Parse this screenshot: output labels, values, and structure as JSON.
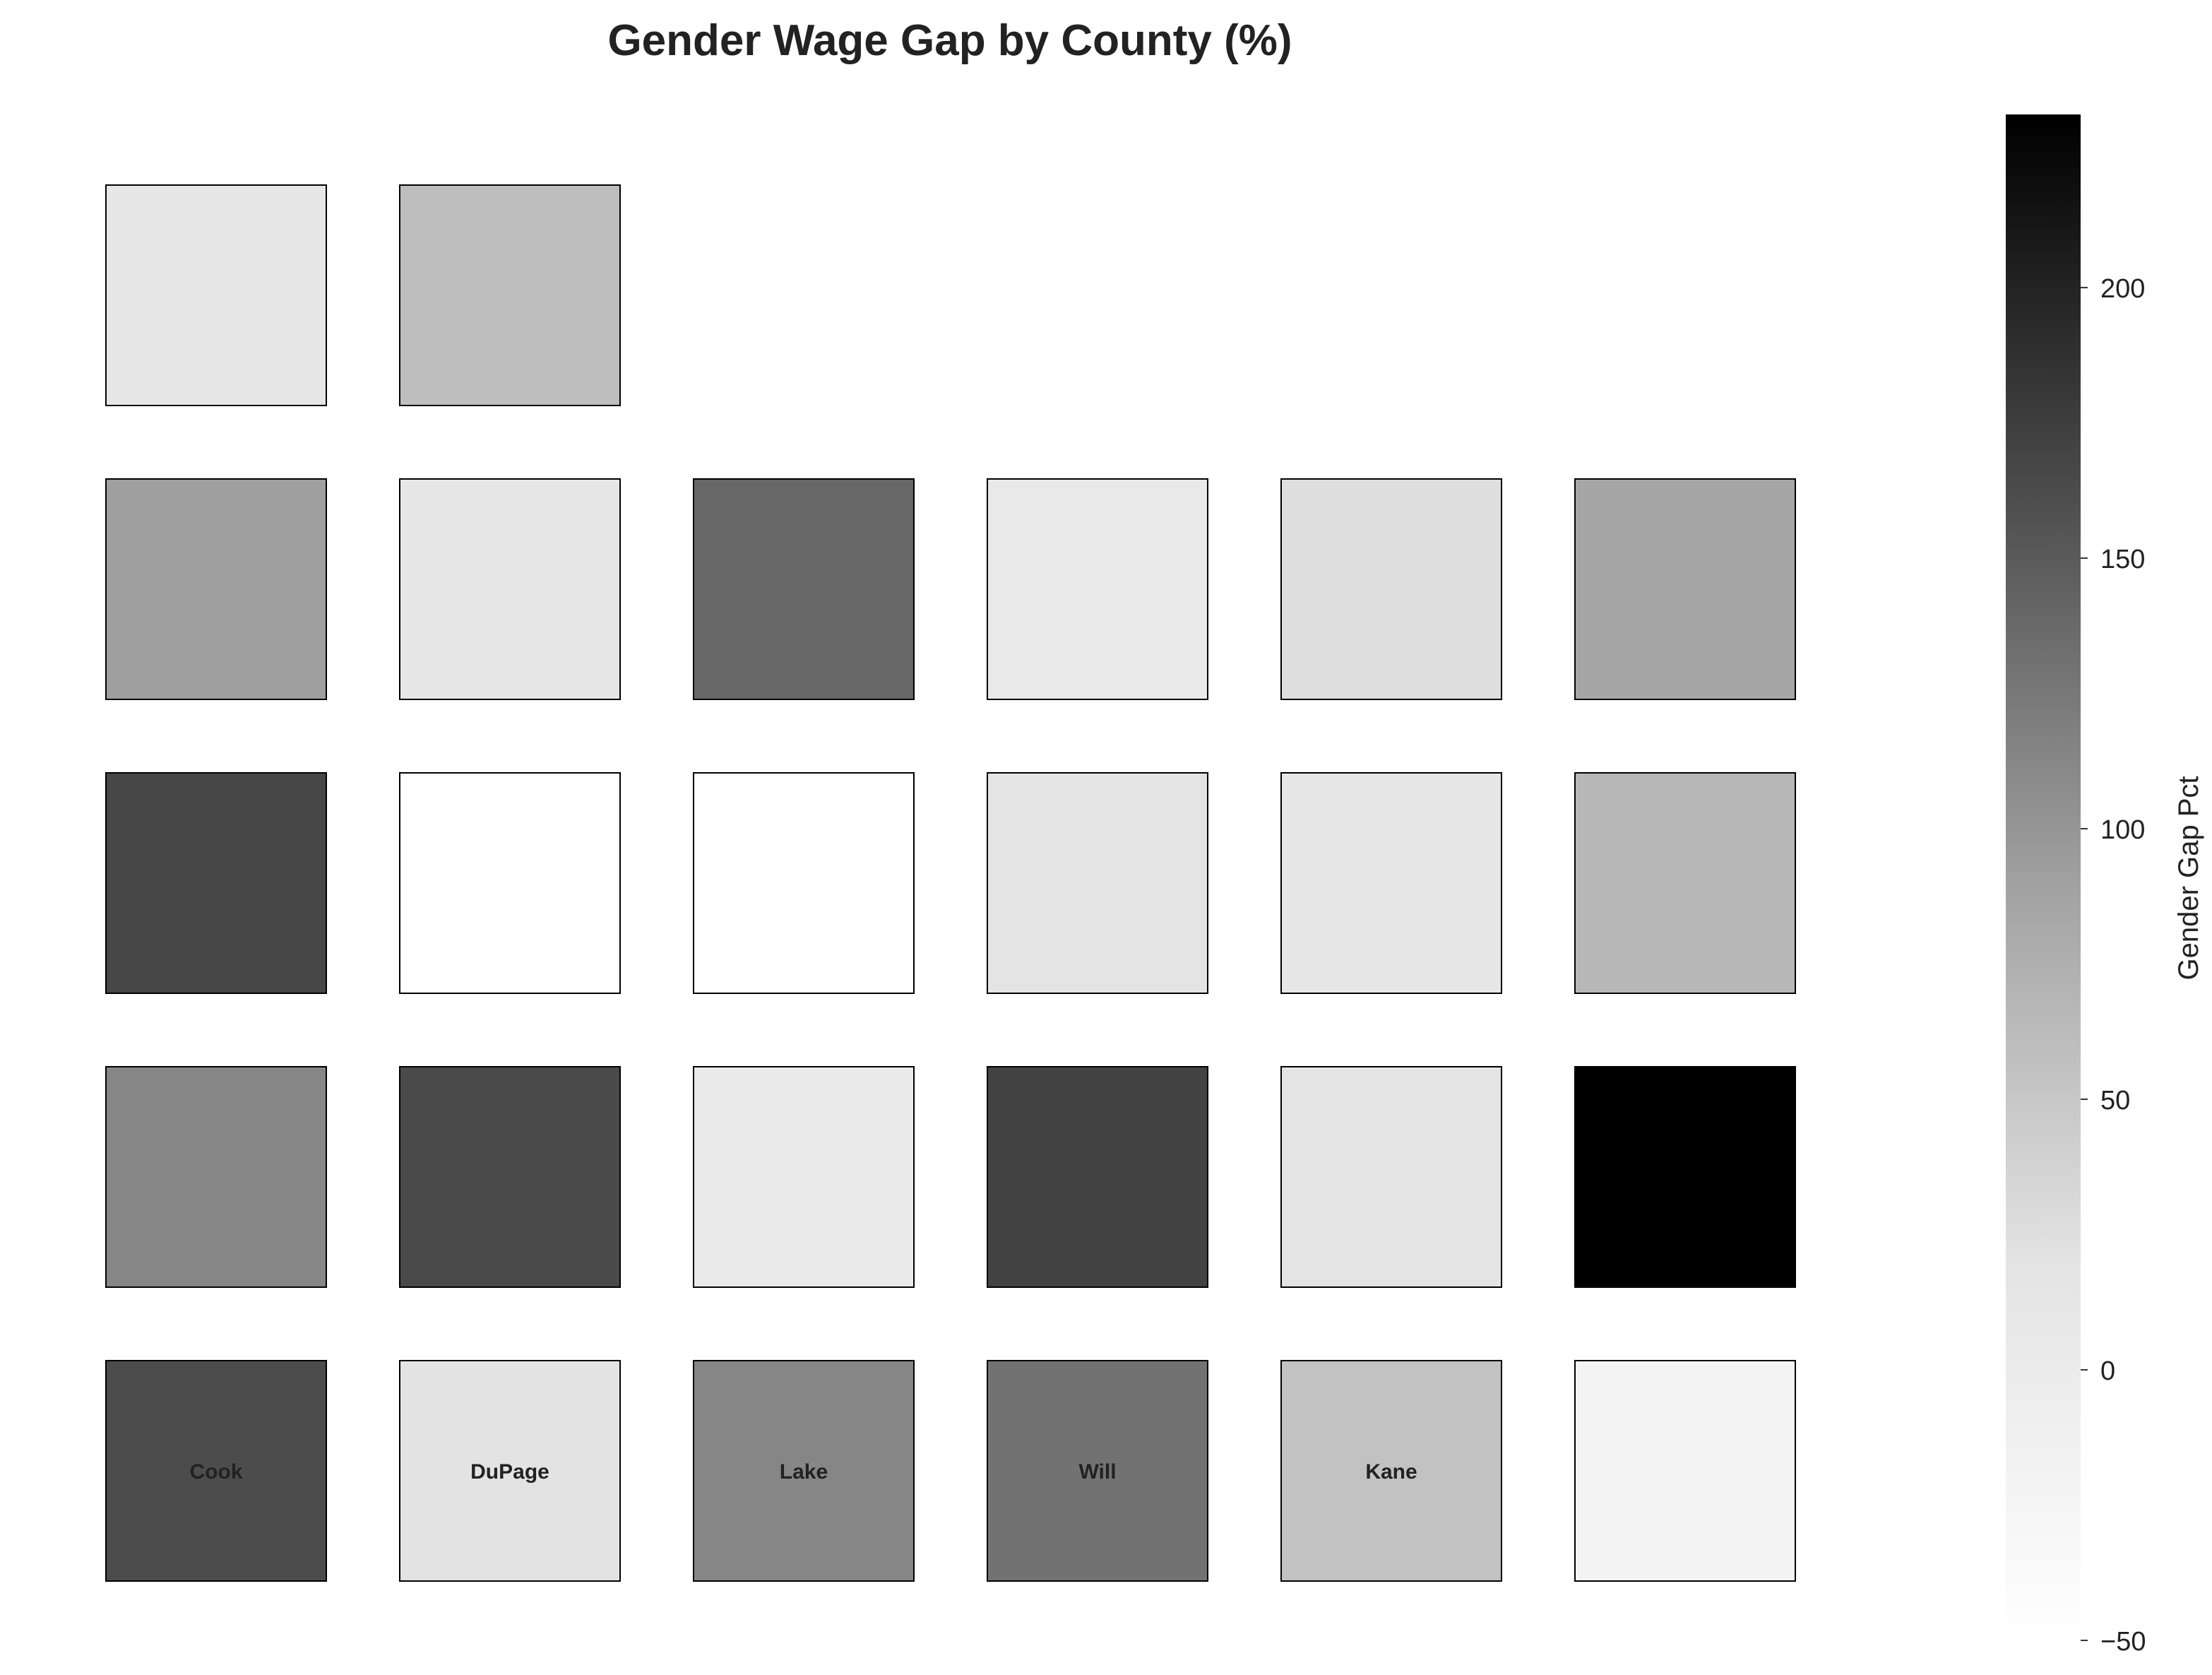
{
  "chart_data": {
    "type": "heatmap",
    "title": "Gender Wage Gap by County (%)",
    "colorbar": {
      "label": "Gender Gap Pct",
      "min": -50,
      "max": 232,
      "ticks": [
        -50,
        0,
        50,
        100,
        150,
        200
      ],
      "tick_labels": [
        "−50",
        "0",
        "50",
        "100",
        "150",
        "200"
      ],
      "colormap": "greys"
    },
    "grid": {
      "rows": 5,
      "cols": 6
    },
    "tiles": [
      {
        "row": 0,
        "col": 0,
        "value": 13,
        "label": ""
      },
      {
        "row": 0,
        "col": 1,
        "value": 59,
        "label": ""
      },
      {
        "row": 1,
        "col": 0,
        "value": 92,
        "label": ""
      },
      {
        "row": 1,
        "col": 1,
        "value": 10,
        "label": ""
      },
      {
        "row": 1,
        "col": 2,
        "value": 139,
        "label": ""
      },
      {
        "row": 1,
        "col": 3,
        "value": 6,
        "label": ""
      },
      {
        "row": 1,
        "col": 4,
        "value": 25,
        "label": ""
      },
      {
        "row": 1,
        "col": 5,
        "value": 85,
        "label": ""
      },
      {
        "row": 2,
        "col": 0,
        "value": 167,
        "label": ""
      },
      {
        "row": 2,
        "col": 1,
        "value": -48,
        "label": ""
      },
      {
        "row": 2,
        "col": 2,
        "value": -48,
        "label": ""
      },
      {
        "row": 2,
        "col": 3,
        "value": 17,
        "label": ""
      },
      {
        "row": 2,
        "col": 4,
        "value": 10,
        "label": ""
      },
      {
        "row": 2,
        "col": 5,
        "value": 67,
        "label": ""
      },
      {
        "row": 3,
        "col": 0,
        "value": 113,
        "label": ""
      },
      {
        "row": 3,
        "col": 1,
        "value": 164,
        "label": ""
      },
      {
        "row": 3,
        "col": 2,
        "value": 3,
        "label": ""
      },
      {
        "row": 3,
        "col": 3,
        "value": 171,
        "label": ""
      },
      {
        "row": 3,
        "col": 4,
        "value": 18,
        "label": ""
      },
      {
        "row": 3,
        "col": 5,
        "value": 232,
        "label": ""
      },
      {
        "row": 4,
        "col": 0,
        "value": 162,
        "label": "Cook"
      },
      {
        "row": 4,
        "col": 1,
        "value": 21,
        "label": "DuPage"
      },
      {
        "row": 4,
        "col": 2,
        "value": 113,
        "label": "Lake"
      },
      {
        "row": 4,
        "col": 3,
        "value": 130,
        "label": "Will"
      },
      {
        "row": 4,
        "col": 4,
        "value": 55,
        "label": "Kane"
      },
      {
        "row": 4,
        "col": 5,
        "value": -20,
        "label": ""
      }
    ]
  }
}
